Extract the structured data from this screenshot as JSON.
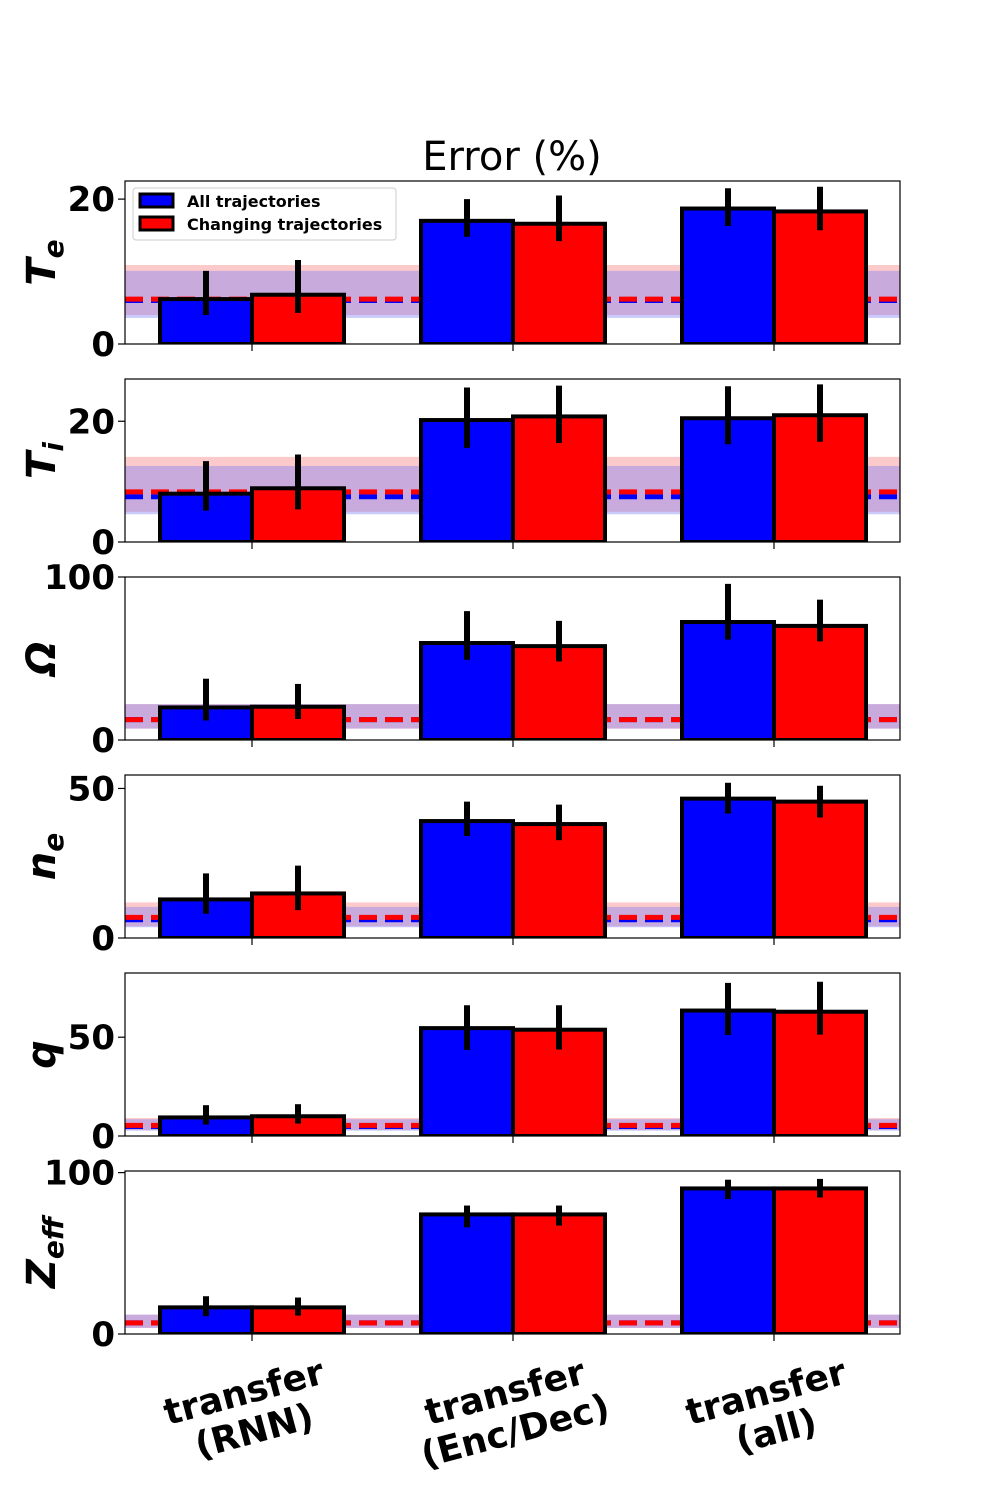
{
  "chart_data": {
    "type": "bar",
    "title": "Error (%)",
    "categories": [
      [
        "transfer",
        "(RNN)"
      ],
      [
        "transfer",
        "(Enc/Dec)"
      ],
      [
        "transfer",
        "(all)"
      ]
    ],
    "legend": {
      "placement": "top-left",
      "entries": [
        "All trajectories",
        "Changing trajectories"
      ]
    },
    "colors": {
      "series": [
        "#0000ff",
        "#ff0000"
      ],
      "band_all": "#7b7bf7",
      "band_changing": "#f77b7b",
      "baseline_all": "#0000ff",
      "baseline_changing": "#ff0000"
    },
    "panels": [
      {
        "ylabel": "T",
        "ylabel_sub": "e",
        "ylim": [
          0,
          22.5
        ],
        "yticks": [
          0,
          20
        ],
        "series": [
          {
            "name": "All trajectories",
            "values": [
              6.2,
              17.0,
              18.7
            ],
            "err_low": [
              4.0,
              14.8,
              16.3
            ],
            "err_high": [
              10.1,
              20.0,
              21.5
            ]
          },
          {
            "name": "Changing trajectories",
            "values": [
              6.8,
              16.6,
              18.3
            ],
            "err_low": [
              4.3,
              14.2,
              15.7
            ],
            "err_high": [
              11.6,
              20.5,
              21.7
            ]
          }
        ],
        "baseline_all": {
          "value": 6.0,
          "low": 3.6,
          "high": 10.1
        },
        "baseline_changing": {
          "value": 6.2,
          "low": 4.0,
          "high": 10.9
        }
      },
      {
        "ylabel": "T",
        "ylabel_sub": "i",
        "ylim": [
          0,
          27.0
        ],
        "yticks": [
          0,
          20
        ],
        "series": [
          {
            "name": "All trajectories",
            "values": [
              8.0,
              20.2,
              20.5
            ],
            "err_low": [
              5.2,
              15.6,
              16.2
            ],
            "err_high": [
              13.4,
              25.6,
              25.8
            ]
          },
          {
            "name": "Changing trajectories",
            "values": [
              8.9,
              20.8,
              21.0
            ],
            "err_low": [
              5.4,
              16.4,
              16.6
            ],
            "err_high": [
              14.5,
              25.9,
              26.1
            ]
          }
        ],
        "baseline_all": {
          "value": 7.5,
          "low": 4.6,
          "high": 12.6
        },
        "baseline_changing": {
          "value": 8.3,
          "low": 5.0,
          "high": 14.1
        }
      },
      {
        "ylabel": "Ω",
        "ylabel_sub": "",
        "ylim": [
          0,
          100
        ],
        "yticks": [
          0,
          100
        ],
        "series": [
          {
            "name": "All trajectories",
            "values": [
              20.0,
              59.5,
              72.4
            ],
            "err_low": [
              12.0,
              49.2,
              61.6
            ],
            "err_high": [
              37.6,
              79.1,
              95.8
            ]
          },
          {
            "name": "Changing trajectories",
            "values": [
              20.4,
              57.6,
              70.0
            ],
            "err_low": [
              12.9,
              48.2,
              60.5
            ],
            "err_high": [
              34.4,
              73.1,
              86.1
            ]
          }
        ],
        "baseline_all": {
          "value": 12.5,
          "low": 7.0,
          "high": 22.0
        },
        "baseline_changing": {
          "value": 12.5,
          "low": 7.0,
          "high": 22.0
        }
      },
      {
        "ylabel": "n",
        "ylabel_sub": "e",
        "ylim": [
          0,
          54.5
        ],
        "yticks": [
          0,
          50
        ],
        "series": [
          {
            "name": "All trajectories",
            "values": [
              12.9,
              39.1,
              46.6
            ],
            "err_low": [
              8.1,
              34.1,
              41.6
            ],
            "err_high": [
              21.6,
              45.6,
              51.9
            ]
          },
          {
            "name": "Changing trajectories",
            "values": [
              14.9,
              38.1,
              45.6
            ],
            "err_low": [
              9.3,
              32.7,
              40.3
            ],
            "err_high": [
              24.2,
              44.6,
              50.9
            ]
          }
        ],
        "baseline_all": {
          "value": 6.1,
          "low": 3.6,
          "high": 10.4
        },
        "baseline_changing": {
          "value": 6.9,
          "low": 3.9,
          "high": 11.9
        }
      },
      {
        "ylabel": "q",
        "ylabel_sub": "",
        "ylim": [
          0,
          82.5
        ],
        "yticks": [
          0,
          50
        ],
        "series": [
          {
            "name": "All trajectories",
            "values": [
              9.4,
              54.6,
              63.5
            ],
            "err_low": [
              5.8,
              43.6,
              51.1
            ],
            "err_high": [
              15.6,
              66.2,
              77.5
            ]
          },
          {
            "name": "Changing trajectories",
            "values": [
              10.0,
              53.8,
              62.9
            ],
            "err_low": [
              6.3,
              43.8,
              51.3
            ],
            "err_high": [
              16.1,
              66.2,
              78.1
            ]
          }
        ],
        "baseline_all": {
          "value": 4.8,
          "low": 2.7,
          "high": 8.5
        },
        "baseline_changing": {
          "value": 5.4,
          "low": 3.0,
          "high": 9.1
        }
      },
      {
        "ylabel": "Z",
        "ylabel_sub": "eff",
        "ylim": [
          0,
          101
        ],
        "yticks": [
          0,
          100
        ],
        "series": [
          {
            "name": "All trajectories",
            "values": [
              16.5,
              74.1,
              90.2
            ],
            "err_low": [
              11.0,
              66.1,
              83.6
            ],
            "err_high": [
              23.4,
              79.6,
              95.6
            ]
          },
          {
            "name": "Changing trajectories",
            "values": [
              16.5,
              74.1,
              90.2
            ],
            "err_low": [
              11.4,
              67.2,
              84.6
            ],
            "err_high": [
              22.6,
              79.6,
              96.1
            ]
          }
        ],
        "baseline_all": {
          "value": 6.9,
          "low": 3.8,
          "high": 12.0
        },
        "baseline_changing": {
          "value": 6.9,
          "low": 3.8,
          "high": 12.0
        }
      }
    ]
  }
}
